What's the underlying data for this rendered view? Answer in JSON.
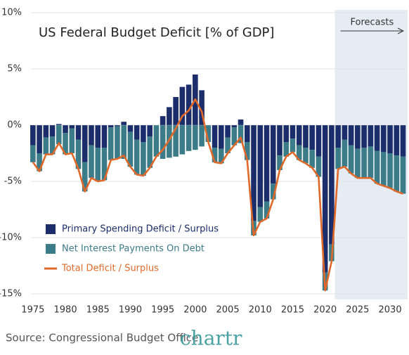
{
  "chart_data": {
    "type": "bar_line",
    "title": "US Federal Budget Deficit  [% of GDP]",
    "source": "Source: Congressional Budget Office",
    "brand": "chartr",
    "x": [
      1975,
      1976,
      1977,
      1978,
      1979,
      1980,
      1981,
      1982,
      1983,
      1984,
      1985,
      1986,
      1987,
      1988,
      1989,
      1990,
      1991,
      1992,
      1993,
      1994,
      1995,
      1996,
      1997,
      1998,
      1999,
      2000,
      2001,
      2002,
      2003,
      2004,
      2005,
      2006,
      2007,
      2008,
      2009,
      2010,
      2011,
      2012,
      2013,
      2014,
      2015,
      2016,
      2017,
      2018,
      2019,
      2020,
      2021,
      2022,
      2023,
      2024,
      2025,
      2026,
      2027,
      2028,
      2029,
      2030,
      2031,
      2032
    ],
    "series": [
      {
        "name": "Primary Spending Deficit / Surplus",
        "color": "#1b2d6b",
        "kind": "bar",
        "values": [
          -1.8,
          -2.5,
          -1.1,
          -1.0,
          0.1,
          -0.7,
          -0.3,
          -1.3,
          -3.3,
          -1.8,
          -2.0,
          -2.0,
          -0.2,
          -0.1,
          0.3,
          -0.6,
          -1.3,
          -1.5,
          -1.0,
          0.0,
          0.8,
          1.6,
          2.5,
          3.4,
          3.6,
          4.5,
          3.1,
          0.0,
          -2.0,
          -2.1,
          -1.1,
          -0.2,
          0.5,
          -1.5,
          -8.5,
          -7.3,
          -6.8,
          -5.2,
          -2.7,
          -1.5,
          -1.2,
          -1.8,
          -2.0,
          -2.2,
          -2.8,
          -13.1,
          -10.6,
          -2.0,
          -1.3,
          -1.8,
          -2.1,
          -2.0,
          -1.9,
          -2.3,
          -2.4,
          -2.5,
          -2.7,
          -2.8
        ]
      },
      {
        "name": "Net Interest Payments On Debt",
        "color": "#3c7b88",
        "kind": "bar",
        "values": [
          -1.5,
          -1.6,
          -1.5,
          -1.6,
          -1.7,
          -1.9,
          -2.2,
          -2.6,
          -2.6,
          -2.9,
          -3.0,
          -2.9,
          -2.9,
          -2.9,
          -3.0,
          -3.1,
          -3.1,
          -3.0,
          -2.8,
          -2.8,
          -3.0,
          -2.9,
          -2.8,
          -2.6,
          -2.3,
          -2.2,
          -1.9,
          -1.5,
          -1.3,
          -1.3,
          -1.4,
          -1.6,
          -1.6,
          -1.6,
          -1.3,
          -1.3,
          -1.5,
          -1.4,
          -1.3,
          -1.3,
          -1.2,
          -1.3,
          -1.4,
          -1.6,
          -1.8,
          -1.6,
          -1.5,
          -1.9,
          -2.4,
          -2.5,
          -2.6,
          -2.7,
          -2.8,
          -2.9,
          -3.0,
          -3.1,
          -3.2,
          -3.3
        ]
      },
      {
        "name": "Total Deficit / Surplus",
        "color": "#e0692a",
        "kind": "line",
        "values": [
          -3.3,
          -4.1,
          -2.6,
          -2.6,
          -1.6,
          -2.6,
          -2.5,
          -3.9,
          -5.9,
          -4.7,
          -5.0,
          -4.9,
          -3.1,
          -3.0,
          -2.7,
          -3.7,
          -4.4,
          -4.5,
          -3.8,
          -2.8,
          -2.2,
          -1.3,
          -0.3,
          0.8,
          1.3,
          2.3,
          1.2,
          -1.5,
          -3.3,
          -3.4,
          -2.5,
          -1.8,
          -1.1,
          -3.1,
          -9.8,
          -8.6,
          -8.3,
          -6.6,
          -4.0,
          -2.8,
          -2.4,
          -3.1,
          -3.4,
          -3.8,
          -4.6,
          -14.7,
          -12.1,
          -3.9,
          -3.7,
          -4.3,
          -4.7,
          -4.7,
          -4.7,
          -5.2,
          -5.4,
          -5.6,
          -5.9,
          -6.1
        ]
      }
    ],
    "annotations": [
      {
        "text": "Forecasts",
        "x": 2021.5
      }
    ],
    "xlim": [
      1974.8,
      2032.7
    ],
    "xticks": [
      1975,
      1980,
      1985,
      1990,
      1995,
      2000,
      2005,
      2010,
      2015,
      2020,
      2025,
      2030
    ],
    "ylim": [
      -15.5,
      10
    ],
    "yticks": [
      {
        "value": 10,
        "label": "10%"
      },
      {
        "value": 5,
        "label": "5%"
      },
      {
        "value": 0,
        "label": "0%"
      },
      {
        "value": -5,
        "label": "-5%"
      },
      {
        "value": -10,
        "label": "-10%"
      },
      {
        "value": -15,
        "label": "-15%"
      }
    ],
    "grid": true,
    "legend": "lower-left"
  }
}
